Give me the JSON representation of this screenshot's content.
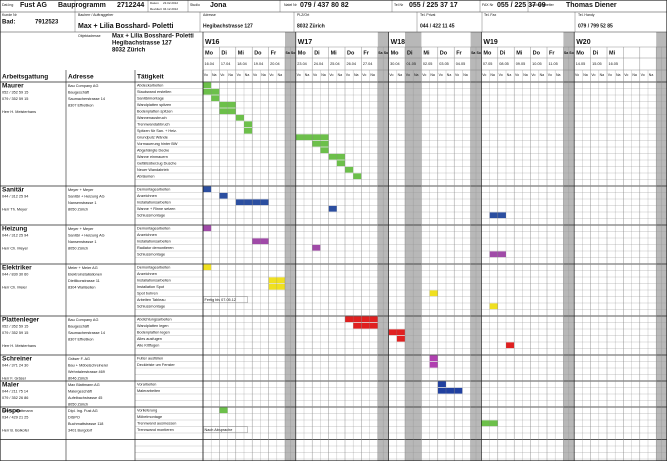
{
  "header": {
    "doc_label": "Dat.Ing",
    "company": "Fust AG",
    "program": "Bauprogramm",
    "number": "2712244",
    "datum_label": "Datum",
    "datum": "23.02.2012",
    "revidiert_label": "Revidiert",
    "revidiert": "04.12.2012",
    "studio_label": "Studio",
    "studio": "Jona",
    "natel_label": "Natel Nr",
    "natel": "079 / 437 80 82",
    "tel_label": "Tel Nr",
    "tel": "055 / 225 37 17",
    "fax_label": "FAX Nr",
    "fax": "055 / 225 37 09",
    "sb_label": "Sachbearbeiter",
    "sb": "Thomas Diener",
    "kunde_label": "Kunde Nr",
    "bad_label": "Bad:",
    "kunde": "7912523",
    "bauherr_label": "Bauherr / Auftraggeber",
    "bauherr": "Max + Lilia Bosshard- Poletti",
    "adresse_label": "Adresse",
    "adresse": "Hegibachstrasse 127",
    "plz_label": "PLZ/Ort",
    "plz": "8032 Zürich",
    "telp_label": "Tel. Privat",
    "telp": "044 / 422 11 45",
    "telf_label": "Tel. Fax",
    "handy_label": "Tel. Handy",
    "handy": "079 / 799 52 85",
    "objekt_label": "Objektadresse",
    "objekt": [
      "Max + Lilia Bosshard- Poletti",
      "Hegibachstrasse 127",
      "8032 Zürich"
    ]
  },
  "columns": [
    "Arbeitsgattung",
    "Adresse",
    "Tätigkeit"
  ],
  "half_days": [
    "Vo",
    "Na"
  ],
  "holidays": [
    "01.05"
  ],
  "weeks": [
    {
      "name": "W16",
      "days": [
        "Mo",
        "Di",
        "Mi",
        "Do",
        "Fr",
        "Sa",
        "So"
      ],
      "dates": [
        "16.04",
        "17.04",
        "18.04",
        "19.04",
        "20.04"
      ]
    },
    {
      "name": "W17",
      "days": [
        "Mo",
        "Di",
        "Mi",
        "Do",
        "Fr",
        "Sa",
        "So"
      ],
      "dates": [
        "23.04",
        "24.04",
        "25.04",
        "26.04",
        "27.04"
      ]
    },
    {
      "name": "W18",
      "days": [
        "Mo",
        "Di",
        "Mi",
        "Do",
        "Fr",
        "Sa",
        "So"
      ],
      "dates": [
        "30.04",
        "01.05",
        "02.05",
        "03.05",
        "04.05"
      ]
    },
    {
      "name": "W19",
      "days": [
        "Mo",
        "Di",
        "Mi",
        "Do",
        "Fr",
        "Sa",
        "So"
      ],
      "dates": [
        "07.05",
        "08.05",
        "09.05",
        "10.05",
        "11.05"
      ]
    },
    {
      "name": "W20",
      "days": [
        "Mo",
        "Di",
        "Mi"
      ],
      "dates": [
        "14.05",
        "15.05",
        "16.05"
      ]
    }
  ],
  "sections": [
    {
      "trade": "Maurer",
      "phones": [
        "052 / 352 59 15",
        "079 / 352 59 15"
      ],
      "contact": "Herr H. Meisterhans",
      "address": [
        "Bau Company AG",
        "Baugeschäft",
        "Saumacherstrasse 14",
        "8307 Effretikon"
      ],
      "color": "#6cc04a",
      "tasks": [
        "Abdeckarbeiten",
        "Staubwand erstellen",
        "Sanitärmontage",
        "Wandplatten spitzen",
        "Bodenplatten spitzen",
        "Wannenausbruch",
        "Trennwandabbruch",
        "Spitzen für San. + Heiz.",
        "Grundputz Wände",
        "Vormauerung hinter BW",
        "Abgehängte Decke",
        "Wanne einmauern",
        "Gefällsüberzug Dusche",
        "Neuer Wandabrieb",
        "Abräumen"
      ],
      "bars": [
        [
          0,
          0,
          1
        ],
        [
          1,
          0,
          2
        ],
        [
          2,
          1,
          1
        ],
        [
          3,
          2,
          2
        ],
        [
          4,
          2,
          2
        ],
        [
          5,
          4,
          1
        ],
        [
          6,
          5,
          1
        ],
        [
          7,
          5,
          1
        ],
        [
          8,
          10,
          4
        ],
        [
          9,
          12,
          2
        ],
        [
          10,
          13,
          1
        ],
        [
          11,
          14,
          2
        ],
        [
          12,
          15,
          1
        ],
        [
          13,
          16,
          1
        ],
        [
          14,
          17,
          1
        ]
      ],
      "notes": []
    },
    {
      "trade": "Sanitär",
      "phones": [
        "044 / 312 25 94"
      ],
      "contact": "Herr Th. Meyer",
      "address": [
        "Meyer + Meyer",
        "Sanitär + Heizung AG",
        "Nansenstrasse 1",
        "8050 Zürich"
      ],
      "color": "#2b4ea0",
      "tasks": [
        "Demontagearbeiten",
        "Anzeichnen",
        "Installationsarbeiten",
        "Wanne + Rinne setzen",
        "Schlussmontage"
      ],
      "bars": [
        [
          0,
          0,
          1
        ],
        [
          1,
          2,
          1
        ],
        [
          2,
          4,
          4
        ],
        [
          3,
          14,
          1
        ],
        [
          4,
          31,
          2
        ]
      ],
      "notes": []
    },
    {
      "trade": "Heizung",
      "phones": [
        "044 / 312 25 94"
      ],
      "contact": "Herr Ch. Meyer",
      "address": [
        "Meyer + Meyer",
        "Sanitär + Heizung AG",
        "Nansenstrasse 1",
        "8050 Zürich"
      ],
      "color": "#a04aa8",
      "tasks": [
        "Demontagearbeiten",
        "Anzeichnen",
        "Installationsarbeiten",
        "Radiator demontieren",
        "Schlussmontage"
      ],
      "bars": [
        [
          0,
          0,
          1
        ],
        [
          2,
          6,
          2
        ],
        [
          3,
          12,
          1
        ],
        [
          4,
          31,
          2
        ]
      ],
      "notes": []
    },
    {
      "trade": "Elektriker",
      "phones": [
        "044 / 830 30 60"
      ],
      "contact": "Herr Ch. Meier",
      "address": [
        "Meier + Meier AG",
        "Elektroinstallationen",
        "Dietlikonstrasse 11",
        "8304 Wallisellen"
      ],
      "color": "#f0e020",
      "tasks": [
        "Demontagearbeiten",
        "Anzeichnen",
        "Installationsarbeiten",
        "Installation Spot",
        "Spot bohren",
        "Arbeiten Tableau",
        "Schlussmontage"
      ],
      "bars": [
        [
          0,
          0,
          1
        ],
        [
          2,
          8,
          2
        ],
        [
          3,
          8,
          2
        ],
        [
          4,
          25,
          1
        ],
        [
          6,
          31,
          1
        ]
      ],
      "notes": [
        {
          "task": 5,
          "start": 0,
          "text": "Fertig bis 07.05.12"
        }
      ]
    },
    {
      "trade": "Plattenleger",
      "phones": [
        "052 / 352 59 15",
        "079 / 352 59 15"
      ],
      "contact": "Herr H. Meisterhans",
      "address": [
        "Bau Company AG",
        "Baugeschäft",
        "Saumacherstrasse 14",
        "8307 Effretikon"
      ],
      "color": "#e02020",
      "tasks": [
        "Abdichtungsarbeiten",
        "Wandplatten legen",
        "Bodenplatten legen",
        "Alles ausfugen",
        "Alle Kittfugen"
      ],
      "bars": [
        [
          0,
          16,
          4
        ],
        [
          1,
          17,
          3
        ],
        [
          2,
          20,
          2
        ],
        [
          3,
          21,
          1
        ],
        [
          4,
          33,
          1
        ]
      ],
      "notes": []
    },
    {
      "trade": "Schreiner",
      "phones": [
        "044 / 371 24 30"
      ],
      "contact": "Herr F. Gräser",
      "address": [
        "Gräser F. AG",
        "Bau + Möbelschreinerei",
        "Wehntalerstrasse 469",
        "8046 Zürich"
      ],
      "color": "#b040b0",
      "tasks": [
        "Futter ausfüllen",
        "Deckleiste um Fenster"
      ],
      "bars": [
        [
          0,
          25,
          1
        ],
        [
          1,
          25,
          1
        ]
      ],
      "notes": []
    },
    {
      "trade": "Maler",
      "phones": [
        "044 / 211 75 14",
        "079 / 352 26 86"
      ],
      "contact": "Herr M. Blattmann",
      "address": [
        "Max Blattmann AG",
        "Malergeschäft",
        "Aufeibachstrasse 45",
        "8050 Zürich"
      ],
      "color": "#2040a0",
      "tasks": [
        "Vorarbeiten",
        "Malerarbeiten"
      ],
      "bars": [
        [
          0,
          26,
          1
        ],
        [
          1,
          26,
          3
        ]
      ],
      "notes": []
    },
    {
      "trade": "Dispo",
      "phones": [
        "034 / 429 21 25"
      ],
      "contact": "Herr B. Bolkofer",
      "address": [
        "Dipl. Ing. Fust AG",
        "DISPO",
        "Buchmattstrasse 118",
        "3401 Burgdorf"
      ],
      "color": "#6cc04a",
      "tasks": [
        "Vorlieferung",
        "Möbelmontage",
        "Trennwand ausmessen",
        "Trennwand montieren"
      ],
      "bars": [
        [
          0,
          2,
          1
        ],
        [
          2,
          30,
          2
        ]
      ],
      "notes": [
        {
          "task": 3,
          "start": 0,
          "text": "Nach Absprache"
        }
      ]
    }
  ]
}
